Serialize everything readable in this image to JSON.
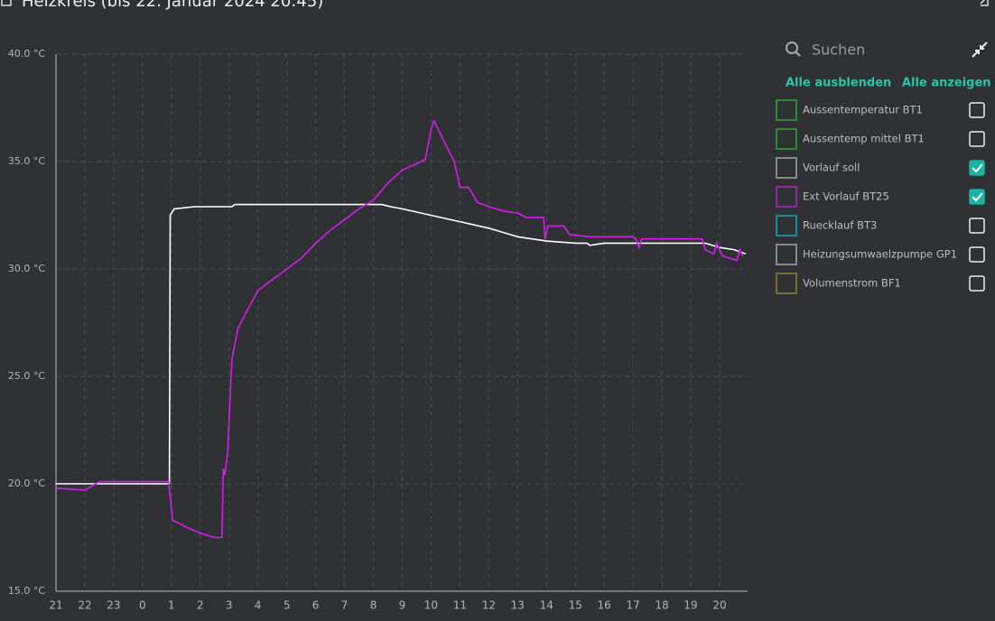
{
  "chart_data": {
    "type": "line",
    "title": "Heizkreis (bis 22. Januar 2024 20:45)",
    "xlim": [
      0,
      23.97
    ],
    "xticks": [
      {
        "value": 0,
        "label": "21"
      },
      {
        "value": 1,
        "label": "22"
      },
      {
        "value": 2,
        "label": "23"
      },
      {
        "value": 3,
        "label": "0"
      },
      {
        "value": 4,
        "label": "1"
      },
      {
        "value": 5,
        "label": "2"
      },
      {
        "value": 6,
        "label": "3"
      },
      {
        "value": 7,
        "label": "4"
      },
      {
        "value": 8,
        "label": "5"
      },
      {
        "value": 9,
        "label": "6"
      },
      {
        "value": 10,
        "label": "7"
      },
      {
        "value": 11,
        "label": "8"
      },
      {
        "value": 12,
        "label": "9"
      },
      {
        "value": 13,
        "label": "10"
      },
      {
        "value": 14,
        "label": "11"
      },
      {
        "value": 15,
        "label": "12"
      },
      {
        "value": 16,
        "label": "13"
      },
      {
        "value": 17,
        "label": "14"
      },
      {
        "value": 18,
        "label": "15"
      },
      {
        "value": 19,
        "label": "16"
      },
      {
        "value": 20,
        "label": "17"
      },
      {
        "value": 21,
        "label": "18"
      },
      {
        "value": 22,
        "label": "19"
      },
      {
        "value": 23,
        "label": "20"
      }
    ],
    "ylim": [
      15,
      40
    ],
    "yticks": [
      {
        "value": 15,
        "label": "15.0 °C"
      },
      {
        "value": 20,
        "label": "20.0 °C"
      },
      {
        "value": 25,
        "label": "25.0 °C"
      },
      {
        "value": 30,
        "label": "30.0 °C"
      },
      {
        "value": 35,
        "label": "35.0 °C"
      },
      {
        "value": 40,
        "label": "40.0 °C"
      }
    ],
    "grid": true,
    "series": [
      {
        "name": "Aussentemperatur BT1",
        "color": "#2f8a2f",
        "visible": false
      },
      {
        "name": "Aussentemp mittel BT1",
        "color": "#2f8a2f",
        "visible": false
      },
      {
        "name": "Vorlauf soll",
        "color": "#8a8a8a",
        "line_color": "#ffffff",
        "visible": true,
        "x": [
          0,
          3.93,
          3.96,
          4.1,
          4.8,
          6.1,
          6.2,
          11.3,
          11.6,
          12,
          13,
          14,
          15,
          15.5,
          16,
          17,
          18,
          18.4,
          18.5,
          19,
          20,
          21,
          22,
          22.5,
          23,
          23.5,
          23.9
        ],
        "values": [
          20.0,
          20.0,
          32.5,
          32.8,
          32.9,
          32.9,
          33.0,
          33.0,
          32.9,
          32.8,
          32.5,
          32.2,
          31.9,
          31.7,
          31.5,
          31.3,
          31.2,
          31.2,
          31.1,
          31.2,
          31.2,
          31.2,
          31.2,
          31.2,
          31.0,
          30.9,
          30.7
        ]
      },
      {
        "name": "Ext Vorlauf BT25",
        "color": "#8e2a9a",
        "line_color": "#d21ee8",
        "visible": true,
        "x": [
          0,
          1,
          1.5,
          2,
          3.9,
          4.05,
          4.5,
          5,
          5.5,
          5.75,
          5.8,
          5.85,
          5.95,
          6.1,
          6.3,
          6.6,
          7,
          7.5,
          8,
          8.5,
          9,
          9.5,
          10,
          10.5,
          11,
          11.5,
          12,
          12.5,
          12.8,
          13,
          13.1,
          13.5,
          13.8,
          14,
          14.3,
          14.6,
          15,
          15.5,
          16,
          16.3,
          16.9,
          16.95,
          17.05,
          17.6,
          17.8,
          18.5,
          20,
          20.1,
          20.2,
          20.3,
          22.4,
          22.5,
          22.8,
          22.9,
          23.1,
          23.6,
          23.7,
          23.8
        ],
        "values": [
          19.8,
          19.7,
          20.1,
          20.1,
          20.1,
          18.3,
          18.0,
          17.7,
          17.5,
          17.5,
          20.7,
          20.4,
          21.5,
          25.8,
          27.2,
          28.0,
          29.0,
          29.5,
          30.0,
          30.5,
          31.2,
          31.8,
          32.3,
          32.8,
          33.2,
          34.0,
          34.6,
          34.9,
          35.1,
          36.5,
          36.9,
          35.8,
          35.0,
          33.8,
          33.8,
          33.1,
          32.9,
          32.7,
          32.6,
          32.4,
          32.4,
          31.4,
          32.0,
          32.0,
          31.6,
          31.5,
          31.5,
          31.4,
          31.0,
          31.4,
          31.4,
          30.9,
          30.7,
          31.2,
          30.6,
          30.4,
          30.9,
          30.6
        ]
      },
      {
        "name": "Ruecklauf BT3",
        "color": "#1f8a96",
        "visible": false
      },
      {
        "name": "Heizungsumwaelzpumpe GP1",
        "color": "#8a8a8a",
        "visible": false
      },
      {
        "name": "Volumenstrom BF1",
        "color": "#7a6e2e",
        "visible": false
      }
    ]
  },
  "panel": {
    "search_placeholder": "Suchen",
    "hide_all": "Alle ausblenden",
    "show_all": "Alle anzeigen"
  }
}
